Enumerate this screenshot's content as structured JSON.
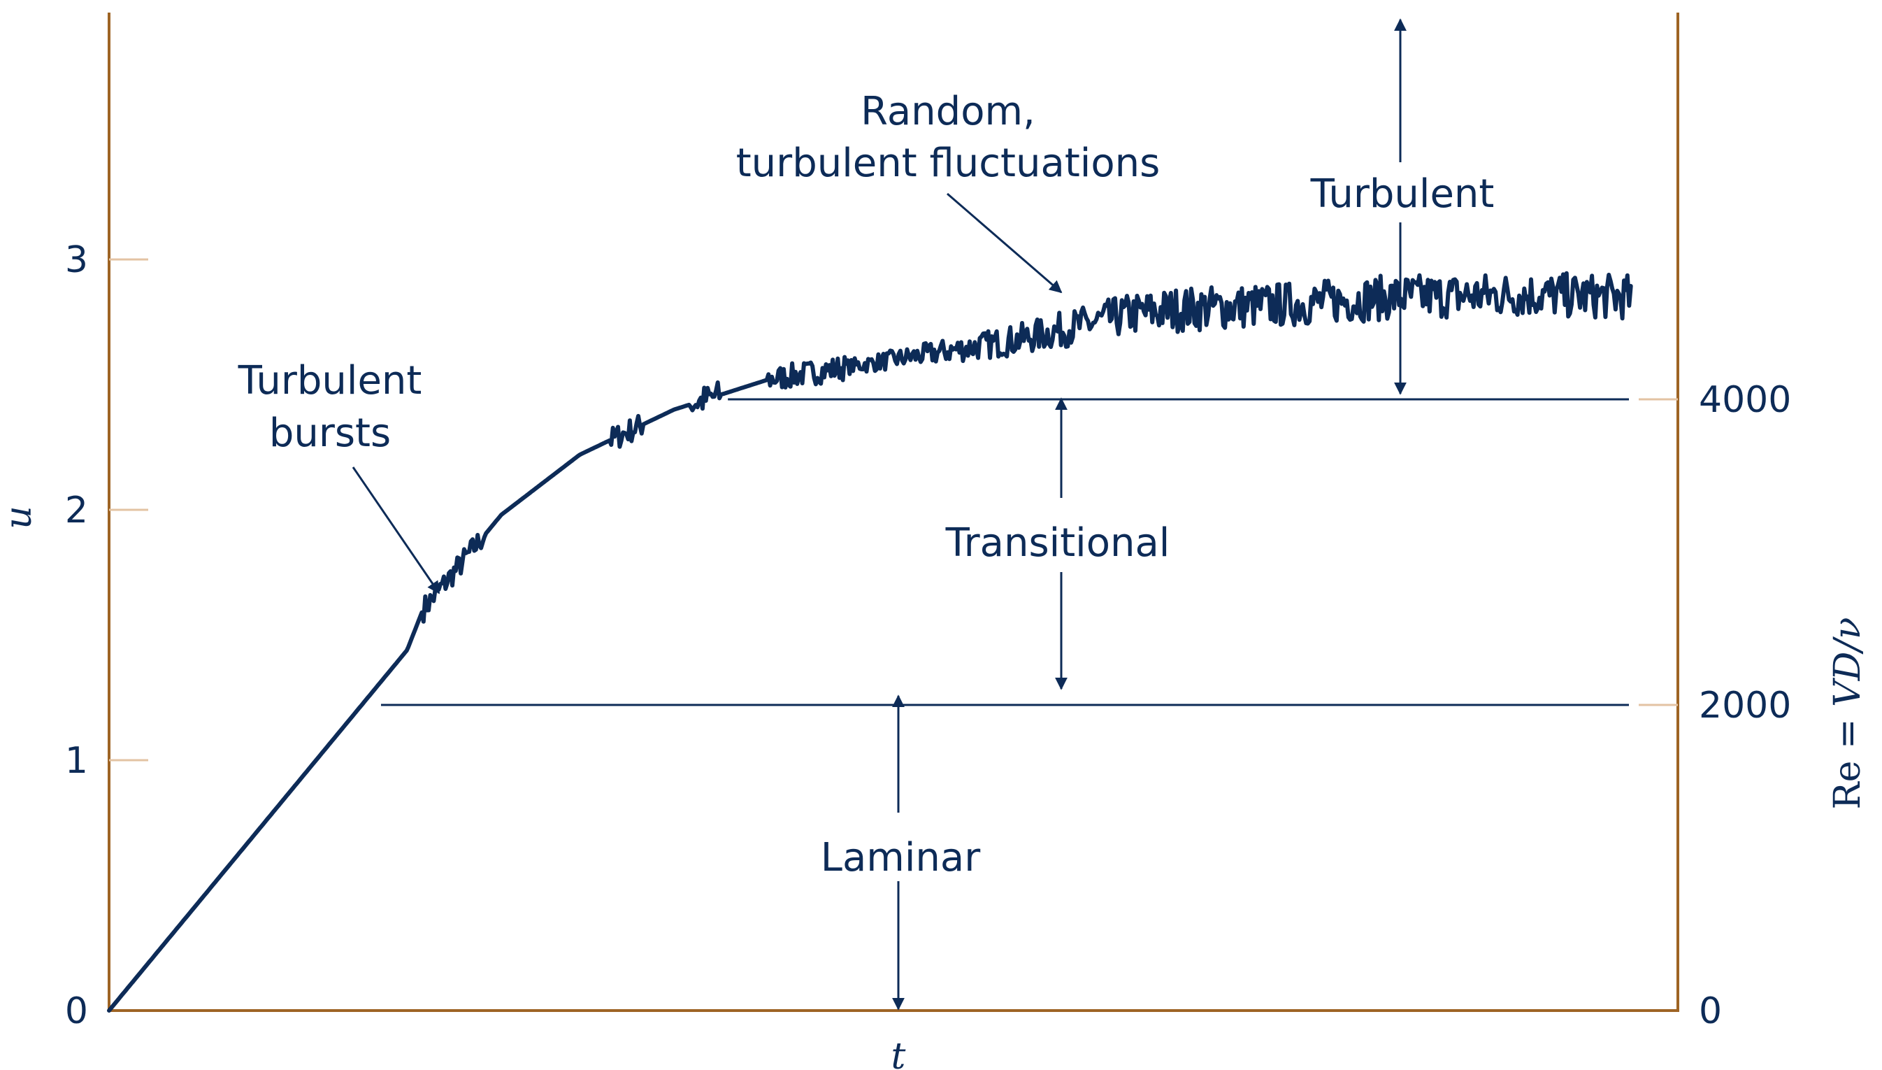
{
  "chart_data": {
    "type": "line",
    "x_axis": {
      "label": "t",
      "ticks": []
    },
    "y_left_axis": {
      "label": "u",
      "ticks": [
        "0",
        "1",
        "2",
        "3"
      ],
      "range": [
        0,
        4
      ]
    },
    "y_right_axis": {
      "label_prefix": "Re = ",
      "label_italic": "VD/ν",
      "ticks": [
        "0",
        "2000",
        "4000"
      ],
      "range": [
        0,
        6500
      ]
    },
    "thresholds": [
      {
        "re": 2000,
        "u": 1.28
      },
      {
        "re": 4000,
        "u": 2.46
      }
    ],
    "series": [
      {
        "color": "#0d2b57",
        "t": [
          0,
          0.19,
          0.2,
          0.25,
          0.3,
          0.36,
          0.42,
          0.45,
          0.5,
          0.58,
          0.65,
          0.68,
          0.75,
          0.82,
          0.9,
          0.97
        ],
        "u": [
          0,
          1.44,
          1.6,
          1.98,
          2.22,
          2.4,
          2.52,
          2.55,
          2.6,
          2.68,
          2.78,
          2.8,
          2.82,
          2.85,
          2.86,
          2.85
        ]
      }
    ],
    "annotations": {
      "turbulent_bursts": [
        "Turbulent",
        "bursts"
      ],
      "random_fluctuations": [
        "Random,",
        "turbulent fluctuations"
      ],
      "regimes": {
        "laminar": "Laminar",
        "transitional": "Transitional",
        "turbulent": "Turbulent"
      }
    }
  }
}
